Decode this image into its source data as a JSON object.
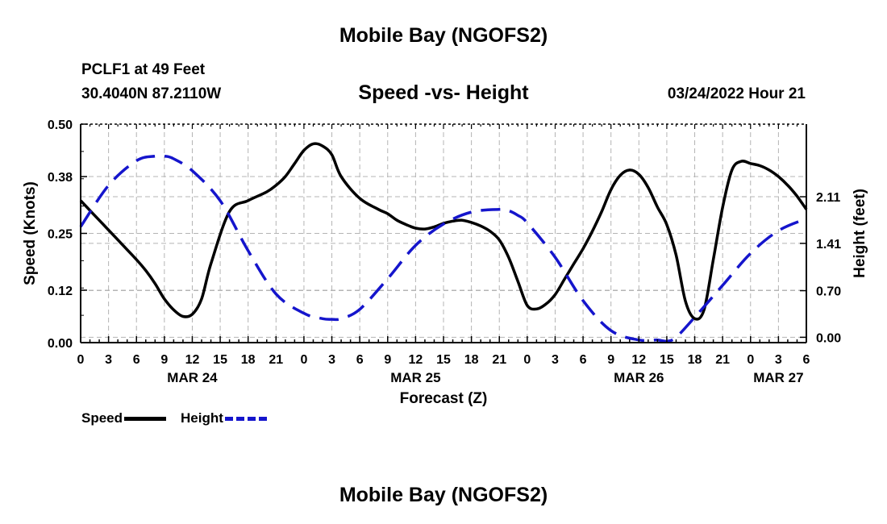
{
  "header": {
    "title": "Mobile Bay (NGOFS2)",
    "station": "PCLF1 at 49 Feet",
    "coords": "30.4040N  87.2110W",
    "subtitle": "Speed -vs- Height",
    "datetime": "03/24/2022 Hour 21"
  },
  "footer": {
    "title": "Mobile Bay (NGOFS2)"
  },
  "legend": {
    "speed_label": "Speed",
    "height_label": "Height"
  },
  "colors": {
    "speed": "#000000",
    "height": "#1515cc",
    "grid": "#b4b4b4"
  },
  "chart_data": {
    "type": "line",
    "xlabel": "Forecast (Z)",
    "x_unit": "hours from 2022-03-24 00Z",
    "xlim": [
      0,
      78
    ],
    "x_ticks": [
      0,
      3,
      6,
      9,
      12,
      15,
      18,
      21,
      24,
      27,
      30,
      33,
      36,
      39,
      42,
      45,
      48,
      51,
      54,
      57,
      60,
      63,
      66,
      69,
      72,
      75,
      78
    ],
    "x_tick_labels": [
      "0",
      "3",
      "6",
      "9",
      "12",
      "15",
      "18",
      "21",
      "0",
      "3",
      "6",
      "9",
      "12",
      "15",
      "18",
      "21",
      "0",
      "3",
      "6",
      "9",
      "12",
      "15",
      "18",
      "21",
      "0",
      "3",
      "6"
    ],
    "date_labels": [
      {
        "x": 12,
        "label": "MAR 24"
      },
      {
        "x": 36,
        "label": "MAR 25"
      },
      {
        "x": 60,
        "label": "MAR 26"
      },
      {
        "x": 75,
        "label": "MAR 27"
      }
    ],
    "left_axis": {
      "label": "Speed (Knots)",
      "lim": [
        0,
        0.5
      ],
      "ticks": [
        0,
        0.12,
        0.25,
        0.38,
        0.5
      ],
      "tick_labels": [
        "0.00",
        "0.12",
        "0.25",
        "0.38",
        "0.50"
      ]
    },
    "right_axis": {
      "label": "Height (feet)",
      "lim": [
        -0.08,
        3.2
      ],
      "ticks": [
        0,
        0.7,
        1.41,
        2.11
      ],
      "tick_labels": [
        "0.00",
        "0.70",
        "1.41",
        "2.11"
      ]
    },
    "grid": true,
    "series": [
      {
        "name": "Speed",
        "axis": "left",
        "style": "solid",
        "x": [
          0,
          2,
          4,
          6,
          7,
          8,
          9,
          10,
          11,
          12,
          13,
          14,
          16,
          18,
          20,
          21,
          22,
          23,
          24,
          25,
          26,
          27,
          28,
          30,
          32,
          33,
          34,
          35,
          36,
          37,
          38,
          39,
          40,
          41,
          42,
          43,
          44,
          45,
          46,
          47,
          48,
          49,
          50,
          51,
          52,
          53,
          54,
          55,
          56,
          57,
          58,
          59,
          60,
          61,
          62,
          63,
          64,
          65,
          66,
          67,
          68,
          69,
          70,
          71,
          72,
          73,
          74,
          75,
          76,
          77,
          78
        ],
        "values": [
          0.325,
          0.28,
          0.235,
          0.19,
          0.165,
          0.135,
          0.1,
          0.075,
          0.06,
          0.065,
          0.1,
          0.18,
          0.3,
          0.325,
          0.345,
          0.36,
          0.38,
          0.41,
          0.44,
          0.455,
          0.45,
          0.43,
          0.38,
          0.33,
          0.305,
          0.295,
          0.28,
          0.27,
          0.262,
          0.26,
          0.265,
          0.273,
          0.278,
          0.28,
          0.275,
          0.267,
          0.255,
          0.235,
          0.195,
          0.14,
          0.085,
          0.077,
          0.088,
          0.11,
          0.145,
          0.18,
          0.215,
          0.255,
          0.3,
          0.35,
          0.383,
          0.395,
          0.385,
          0.355,
          0.31,
          0.27,
          0.2,
          0.095,
          0.055,
          0.075,
          0.19,
          0.31,
          0.395,
          0.415,
          0.41,
          0.405,
          0.395,
          0.38,
          0.36,
          0.335,
          0.305
        ],
        "note": "shifted index; see x_offset",
        "x_offset": 0
      },
      {
        "name": "Height",
        "axis": "right",
        "style": "dashed",
        "x": [
          0,
          3,
          6,
          8,
          9,
          10,
          12,
          15,
          18,
          21,
          24,
          26,
          27,
          28,
          30,
          33,
          36,
          39,
          42,
          45,
          46,
          47,
          48,
          51,
          54,
          57,
          60,
          62,
          63,
          64,
          66,
          69,
          72,
          75,
          78
        ],
        "values": [
          1.66,
          2.28,
          2.65,
          2.72,
          2.72,
          2.68,
          2.5,
          2.05,
          1.3,
          0.65,
          0.36,
          0.28,
          0.27,
          0.28,
          0.42,
          0.88,
          1.38,
          1.7,
          1.88,
          1.92,
          1.9,
          1.83,
          1.72,
          1.2,
          0.55,
          0.1,
          -0.04,
          -0.04,
          -0.06,
          0.0,
          0.3,
          0.78,
          1.26,
          1.6,
          1.78
        ]
      }
    ]
  }
}
